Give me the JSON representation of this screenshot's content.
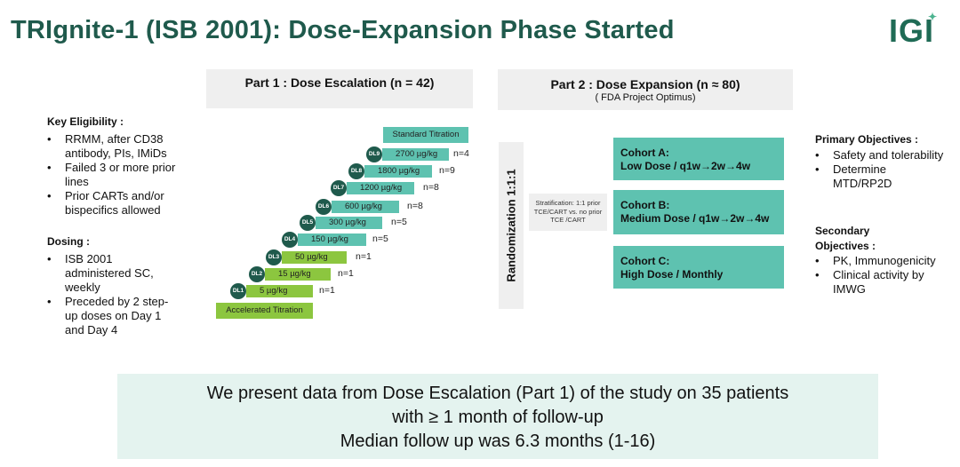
{
  "header": {
    "title": "TRIgnite-1 (ISB 2001): Dose-Expansion Phase Started",
    "logo": "IGI"
  },
  "part1": {
    "title": "Part 1 : Dose Escalation (n = 42)"
  },
  "part2": {
    "title": "Part 2 : Dose Expansion (n ≈ 80)",
    "subtitle": "( FDA Project Optimus)"
  },
  "left": {
    "eligibility_heading": "Key Eligibility :",
    "eligibility": [
      "RRMM, after CD38 antibody, PIs, IMiDs",
      "Failed 3 or more prior lines",
      "Prior CARTs and/or bispecifics allowed"
    ],
    "dosing_heading": "Dosing :",
    "dosing": [
      "ISB 2001 administered SC, weekly",
      "Preceded by 2 step-up doses on Day 1 and  Day 4"
    ]
  },
  "escalation": {
    "standard_label": "Standard Titration",
    "accelerated_label": "Accelerated Titration",
    "levels": [
      {
        "dl": "DL9",
        "dose": "2700 µg/kg",
        "n": "n=4"
      },
      {
        "dl": "DL8",
        "dose": "1800 µg/kg",
        "n": "n=9"
      },
      {
        "dl": "DL7",
        "dose": "1200 µg/kg",
        "n": "n=8"
      },
      {
        "dl": "DL6",
        "dose": "600 µg/kg",
        "n": "n=8"
      },
      {
        "dl": "DL5",
        "dose": "300 µg/kg",
        "n": "n=5"
      },
      {
        "dl": "DL4",
        "dose": "150 µg/kg",
        "n": "n=5"
      },
      {
        "dl": "DL3",
        "dose": "50 µg/kg",
        "n": "n=1"
      },
      {
        "dl": "DL2",
        "dose": "15 µg/kg",
        "n": "n=1"
      },
      {
        "dl": "DL1",
        "dose": "5 µg/kg",
        "n": "n=1"
      }
    ],
    "colors": {
      "standard": "#5ec2b0",
      "accelerated": "#8cc63f",
      "circle": "#1f5a4c"
    }
  },
  "randomization": {
    "label": "Randomization 1:1:1",
    "stratification": "Stratification: 1:1 prior TCE/CART vs. no prior TCE /CART"
  },
  "cohorts": [
    {
      "name": "Cohort A:",
      "detail": "Low Dose / q1w→2w→4w"
    },
    {
      "name": "Cohort B:",
      "detail": "Medium Dose / q1w→2w→4w"
    },
    {
      "name": "Cohort C:",
      "detail": "High Dose / Monthly"
    }
  ],
  "right": {
    "primary_heading": "Primary Objectives :",
    "primary": [
      "Safety and tolerability",
      "Determine MTD/RP2D"
    ],
    "secondary_heading_1": "Secondary",
    "secondary_heading_2": "Objectives :",
    "secondary": [
      "PK, Immunogenicity",
      "Clinical activity by IMWG"
    ]
  },
  "summary": [
    "We present data from Dose Escalation (Part 1) of the study on 35 patients",
    "with ≥ 1 month of follow-up",
    "Median follow up was 6.3 months (1-16)"
  ]
}
